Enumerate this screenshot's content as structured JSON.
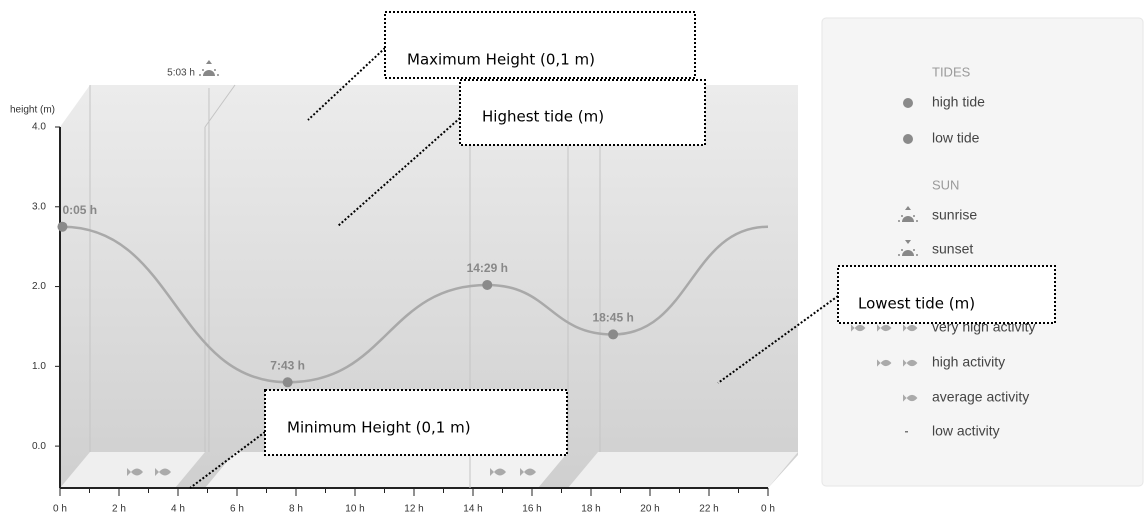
{
  "chart_data": {
    "type": "line",
    "y_label": "height (m)",
    "x": [
      0.083,
      7.717,
      14.483,
      18.75,
      24
    ],
    "values": [
      2.75,
      0.8,
      2.02,
      1.4,
      2.75
    ],
    "x_labels": [
      "0:05 h",
      "7:43 h",
      "14:29 h",
      "18:45 h",
      null
    ],
    "color": "#a9a9a9",
    "marker_color": "#8a8a8a",
    "xlim": [
      0,
      24
    ],
    "xticks": [
      {
        "value": 0,
        "label": "0 h"
      },
      {
        "value": 2,
        "label": "2 h"
      },
      {
        "value": 4,
        "label": "4 h"
      },
      {
        "value": 6,
        "label": "6 h"
      },
      {
        "value": 8,
        "label": "8 h"
      },
      {
        "value": 10,
        "label": "10 h"
      },
      {
        "value": 12,
        "label": "12 h"
      },
      {
        "value": 14,
        "label": "14 h"
      },
      {
        "value": 16,
        "label": "16 h"
      },
      {
        "value": 18,
        "label": "18 h"
      },
      {
        "value": 20,
        "label": "20 h"
      },
      {
        "value": 22,
        "label": "22 h"
      },
      {
        "value": 24,
        "label": "0 h"
      }
    ],
    "ylim": [
      -0.5,
      4.0
    ],
    "yticks": [
      {
        "value": 0,
        "label": "0.0"
      },
      {
        "value": 1,
        "label": "1.0"
      },
      {
        "value": 2,
        "label": "2.0"
      },
      {
        "value": 3,
        "label": "3.0"
      },
      {
        "value": 4,
        "label": "4.0"
      }
    ],
    "sunrise": {
      "x": 5.05,
      "label": "5:03 h"
    }
  },
  "legend": {
    "sections": [
      {
        "title": "TIDES",
        "items": [
          "high tide",
          "low tide"
        ]
      },
      {
        "title": "SUN",
        "items": [
          "sunrise",
          "sunset"
        ]
      },
      {
        "items": [
          "very high activity",
          "high activity",
          "average activity",
          "low activity"
        ]
      }
    ]
  },
  "annotations": [
    "Maximum Height (0,1 m)",
    "Highest tide (m)",
    "Lowest tide (m)",
    "Minimum Height (0,1 m)"
  ]
}
